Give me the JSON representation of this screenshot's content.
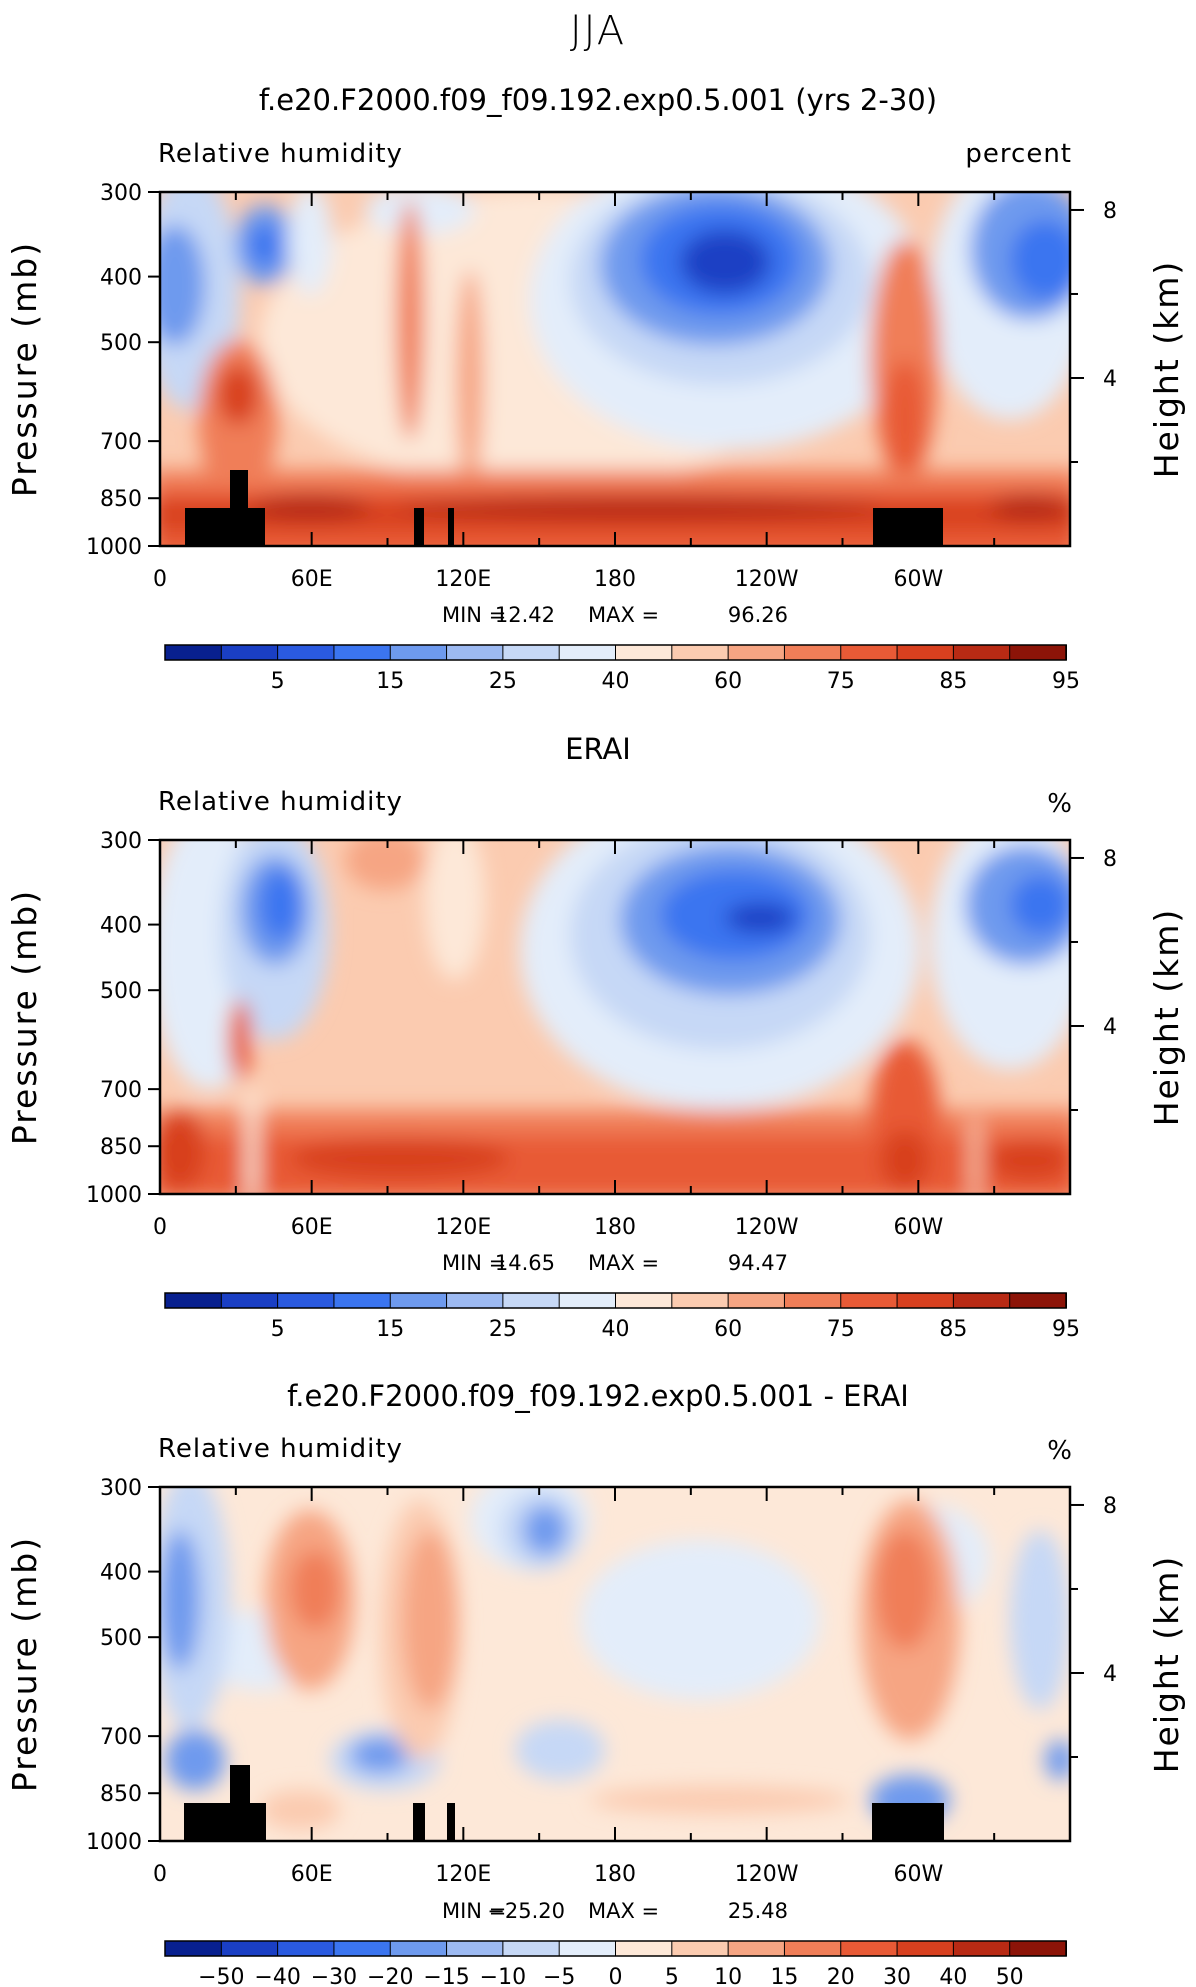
{
  "season": "JJA",
  "chart_data": [
    {
      "type": "heatmap",
      "title": "f.e20.F2000.f09_f09.192.exp0.5.001 (yrs 2-30)",
      "left_label": "Relative humidity",
      "right_label": "percent",
      "ylabel": "Pressure (mb)",
      "y2label": "Height (km)",
      "x_ticks": [
        "0",
        "60E",
        "120E",
        "180",
        "120W",
        "60W"
      ],
      "y_ticks": [
        "300",
        "400",
        "500",
        "700",
        "850",
        "1000"
      ],
      "y2_ticks": [
        "8",
        "4"
      ],
      "min_label": "MIN =",
      "min_value": "12.42",
      "max_label": "MAX =",
      "max_value": "96.26",
      "colorbar_labels": [
        "5",
        "15",
        "25",
        "40",
        "60",
        "75",
        "85",
        "95"
      ],
      "value_range": [
        12.42,
        96.26
      ]
    },
    {
      "type": "heatmap",
      "title": "ERAI",
      "left_label": "Relative humidity",
      "right_label": "%",
      "ylabel": "Pressure (mb)",
      "y2label": "Height (km)",
      "x_ticks": [
        "0",
        "60E",
        "120E",
        "180",
        "120W",
        "60W"
      ],
      "y_ticks": [
        "300",
        "400",
        "500",
        "700",
        "850",
        "1000"
      ],
      "y2_ticks": [
        "8",
        "4"
      ],
      "min_label": "MIN =",
      "min_value": "14.65",
      "max_label": "MAX =",
      "max_value": "94.47",
      "colorbar_labels": [
        "5",
        "15",
        "25",
        "40",
        "60",
        "75",
        "85",
        "95"
      ],
      "value_range": [
        14.65,
        94.47
      ]
    },
    {
      "type": "heatmap",
      "title": "f.e20.F2000.f09_f09.192.exp0.5.001 - ERAI",
      "left_label": "Relative humidity",
      "right_label": "%",
      "ylabel": "Pressure (mb)",
      "y2label": "Height (km)",
      "x_ticks": [
        "0",
        "60E",
        "120E",
        "180",
        "120W",
        "60W"
      ],
      "y_ticks": [
        "300",
        "400",
        "500",
        "700",
        "850",
        "1000"
      ],
      "y2_ticks": [
        "8",
        "4"
      ],
      "min_label": "MIN =",
      "min_value": "−25.20",
      "max_label": "MAX =",
      "max_value": "25.48",
      "colorbar_labels": [
        "−50",
        "−40",
        "−30",
        "−20",
        "−15",
        "−10",
        "−5",
        "0",
        "5",
        "10",
        "15",
        "20",
        "30",
        "40",
        "50"
      ],
      "value_range": [
        -25.2,
        25.48
      ]
    }
  ],
  "colors": {
    "rh_palette": [
      "#08208f",
      "#1a3fc4",
      "#2a5ae0",
      "#3b75f0",
      "#6e9aee",
      "#9dbaf2",
      "#c6d8f6",
      "#e3edfa",
      "#fde8d8",
      "#fbcbb0",
      "#f6a583",
      "#f07e58",
      "#e85a36",
      "#d8401f",
      "#b82a14",
      "#8c1408"
    ],
    "diff_palette": [
      "#08208f",
      "#1a3fc4",
      "#2a5ae0",
      "#3b75f0",
      "#6e9aee",
      "#9dbaf2",
      "#c6d8f6",
      "#e3edfa",
      "#fde8d8",
      "#fbcbb0",
      "#f6a583",
      "#f07e58",
      "#e85a36",
      "#d8401f",
      "#b82a14",
      "#8c1408"
    ],
    "topography": "#000000"
  }
}
